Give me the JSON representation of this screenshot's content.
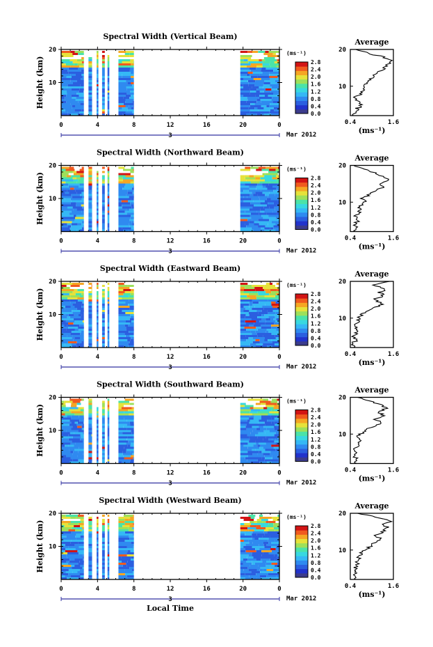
{
  "chart_data": [
    {
      "type": "heatmap",
      "title": "Spectral Width (Vertical Beam)",
      "ylabel": "Height (km)",
      "yticks": [
        "20",
        "10"
      ],
      "xticks": [
        "0",
        "4",
        "8",
        "12",
        "16",
        "20",
        "0"
      ],
      "xlim": [
        0,
        24
      ],
      "ylim": [
        0,
        20
      ],
      "date_label": "3",
      "month_label": "Mar 2012",
      "data_blocks_hours": [
        [
          0,
          2.5
        ],
        [
          3.0,
          3.4
        ],
        [
          3.9,
          4.1
        ],
        [
          4.5,
          4.8
        ],
        [
          5.1,
          5.3
        ],
        [
          6.3,
          8.0
        ],
        [
          19.7,
          24
        ]
      ],
      "colorbar": {
        "unit": "(ms⁻¹)",
        "ticks": [
          "2.8",
          "2.4",
          "2.0",
          "1.6",
          "1.2",
          "0.8",
          "0.4",
          "0.0"
        ],
        "range": [
          0,
          2.8
        ]
      },
      "average": {
        "title": "Average",
        "xlabel": "(ms⁻¹)",
        "xticks": [
          "0.4",
          "1.6"
        ],
        "yticks": [
          "20",
          "10"
        ],
        "xlim": [
          0.4,
          1.6
        ],
        "ylim": [
          2,
          20
        ],
        "profile": [
          [
            0.5,
            2
          ],
          [
            0.55,
            3
          ],
          [
            0.6,
            4
          ],
          [
            0.75,
            5
          ],
          [
            0.6,
            6
          ],
          [
            0.55,
            7
          ],
          [
            0.7,
            8
          ],
          [
            0.75,
            9
          ],
          [
            0.8,
            10
          ],
          [
            0.9,
            11
          ],
          [
            1.0,
            12
          ],
          [
            1.1,
            13
          ],
          [
            1.2,
            14
          ],
          [
            1.35,
            15
          ],
          [
            1.45,
            16
          ],
          [
            1.5,
            17
          ],
          [
            1.3,
            18
          ],
          [
            0.9,
            19
          ],
          [
            0.55,
            20
          ]
        ]
      }
    },
    {
      "type": "heatmap",
      "title": "Spectral Width (Northward Beam)",
      "ylabel": "Height (km)",
      "yticks": [
        "20",
        "10"
      ],
      "xticks": [
        "0",
        "4",
        "8",
        "12",
        "16",
        "20",
        "0"
      ],
      "xlim": [
        0,
        24
      ],
      "ylim": [
        0,
        20
      ],
      "date_label": "3",
      "month_label": "Mar 2012",
      "data_blocks_hours": [
        [
          0,
          2.5
        ],
        [
          3.0,
          3.4
        ],
        [
          3.9,
          4.1
        ],
        [
          4.5,
          4.8
        ],
        [
          5.1,
          5.3
        ],
        [
          6.3,
          8.0
        ],
        [
          19.7,
          24
        ]
      ],
      "colorbar": {
        "unit": "(ms⁻¹)",
        "ticks": [
          "2.8",
          "2.4",
          "2.0",
          "1.6",
          "1.2",
          "0.8",
          "0.4",
          "0.0"
        ],
        "range": [
          0,
          2.8
        ]
      },
      "average": {
        "title": "Average",
        "xlabel": "(ms⁻¹)",
        "xticks": [
          "0.4",
          "1.6"
        ],
        "yticks": [
          "20",
          "10"
        ],
        "xlim": [
          0.4,
          1.6
        ],
        "ylim": [
          2,
          20
        ],
        "profile": [
          [
            0.5,
            2
          ],
          [
            0.6,
            3
          ],
          [
            0.5,
            4
          ],
          [
            0.65,
            5
          ],
          [
            0.55,
            6
          ],
          [
            0.6,
            7
          ],
          [
            0.7,
            8
          ],
          [
            0.65,
            9
          ],
          [
            0.8,
            10
          ],
          [
            0.75,
            11
          ],
          [
            0.9,
            12
          ],
          [
            1.05,
            13
          ],
          [
            1.3,
            14
          ],
          [
            1.2,
            15
          ],
          [
            1.45,
            16
          ],
          [
            1.3,
            17
          ],
          [
            1.1,
            18
          ],
          [
            0.8,
            19
          ],
          [
            0.5,
            20
          ]
        ]
      }
    },
    {
      "type": "heatmap",
      "title": "Spectral Width (Eastward Beam)",
      "ylabel": "Height (km)",
      "yticks": [
        "20",
        "10"
      ],
      "xticks": [
        "0",
        "4",
        "8",
        "12",
        "16",
        "20",
        "0"
      ],
      "xlim": [
        0,
        24
      ],
      "ylim": [
        0,
        20
      ],
      "date_label": "3",
      "month_label": "Mar 2012",
      "data_blocks_hours": [
        [
          0,
          2.5
        ],
        [
          3.0,
          3.4
        ],
        [
          3.9,
          4.1
        ],
        [
          4.5,
          4.8
        ],
        [
          5.1,
          5.3
        ],
        [
          6.3,
          8.0
        ],
        [
          19.7,
          24
        ]
      ],
      "colorbar": {
        "unit": "(ms⁻¹)",
        "ticks": [
          "2.8",
          "2.4",
          "2.0",
          "1.6",
          "1.2",
          "0.8",
          "0.4",
          "0.0"
        ],
        "range": [
          0,
          2.8
        ]
      },
      "average": {
        "title": "Average",
        "xlabel": "(ms⁻¹)",
        "xticks": [
          "0.4",
          "1.6"
        ],
        "yticks": [
          "20",
          "10"
        ],
        "xlim": [
          0.4,
          1.6
        ],
        "ylim": [
          2,
          20
        ],
        "profile": [
          [
            0.45,
            2
          ],
          [
            0.5,
            3
          ],
          [
            0.55,
            4
          ],
          [
            0.5,
            5
          ],
          [
            0.55,
            6
          ],
          [
            0.6,
            7
          ],
          [
            0.55,
            8
          ],
          [
            0.6,
            9
          ],
          [
            0.65,
            10
          ],
          [
            0.7,
            11
          ],
          [
            0.9,
            12
          ],
          [
            1.1,
            13
          ],
          [
            1.3,
            14
          ],
          [
            1.05,
            15
          ],
          [
            1.35,
            16
          ],
          [
            1.2,
            17
          ],
          [
            1.4,
            18
          ],
          [
            1.0,
            19
          ],
          [
            1.5,
            20
          ]
        ]
      }
    },
    {
      "type": "heatmap",
      "title": "Spectral Width (Southward Beam)",
      "ylabel": "Height (km)",
      "yticks": [
        "20",
        "10"
      ],
      "xticks": [
        "0",
        "4",
        "8",
        "12",
        "16",
        "20",
        "0"
      ],
      "xlim": [
        0,
        24
      ],
      "ylim": [
        0,
        20
      ],
      "date_label": "3",
      "month_label": "Mar 2012",
      "data_blocks_hours": [
        [
          0,
          2.5
        ],
        [
          3.0,
          3.4
        ],
        [
          3.9,
          4.1
        ],
        [
          4.5,
          4.8
        ],
        [
          5.1,
          5.3
        ],
        [
          6.3,
          8.0
        ],
        [
          19.7,
          24
        ]
      ],
      "colorbar": {
        "unit": "(ms⁻¹)",
        "ticks": [
          "2.8",
          "2.4",
          "2.0",
          "1.6",
          "1.2",
          "0.8",
          "0.4",
          "0.0"
        ],
        "range": [
          0,
          2.8
        ]
      },
      "average": {
        "title": "Average",
        "xlabel": "(ms⁻¹)",
        "xticks": [
          "0.4",
          "1.6"
        ],
        "yticks": [
          "20",
          "10"
        ],
        "xlim": [
          0.4,
          1.6
        ],
        "ylim": [
          2,
          20
        ],
        "profile": [
          [
            0.55,
            2
          ],
          [
            0.6,
            3
          ],
          [
            0.5,
            4
          ],
          [
            0.6,
            5
          ],
          [
            0.55,
            6
          ],
          [
            0.6,
            7
          ],
          [
            0.65,
            8
          ],
          [
            0.6,
            9
          ],
          [
            0.7,
            10
          ],
          [
            0.8,
            11
          ],
          [
            1.0,
            12
          ],
          [
            1.3,
            13
          ],
          [
            1.1,
            14
          ],
          [
            1.35,
            15
          ],
          [
            1.2,
            16
          ],
          [
            1.4,
            17
          ],
          [
            1.25,
            18
          ],
          [
            0.9,
            19
          ],
          [
            0.6,
            20
          ]
        ]
      }
    },
    {
      "type": "heatmap",
      "title": "Spectral Width (Westward Beam)",
      "ylabel": "Height (km)",
      "yticks": [
        "20",
        "10"
      ],
      "xticks": [
        "0",
        "4",
        "8",
        "12",
        "16",
        "20",
        "0"
      ],
      "xlim": [
        0,
        24
      ],
      "ylim": [
        0,
        20
      ],
      "date_label": "3",
      "month_label": "Mar 2012",
      "xlabel": "Local Time",
      "data_blocks_hours": [
        [
          0,
          2.5
        ],
        [
          3.0,
          3.4
        ],
        [
          3.9,
          4.1
        ],
        [
          4.5,
          4.8
        ],
        [
          5.1,
          5.3
        ],
        [
          6.3,
          8.0
        ],
        [
          19.7,
          24
        ]
      ],
      "colorbar": {
        "unit": "(ms⁻¹)",
        "ticks": [
          "2.8",
          "2.4",
          "2.0",
          "1.6",
          "1.2",
          "0.8",
          "0.4",
          "0.0"
        ],
        "range": [
          0,
          2.8
        ]
      },
      "average": {
        "title": "Average",
        "xlabel": "(ms⁻¹)",
        "xticks": [
          "0.4",
          "1.6"
        ],
        "yticks": [
          "20",
          "10"
        ],
        "xlim": [
          0.4,
          1.6
        ],
        "ylim": [
          2,
          20
        ],
        "profile": [
          [
            0.5,
            2
          ],
          [
            0.55,
            3
          ],
          [
            0.5,
            4
          ],
          [
            0.55,
            5
          ],
          [
            0.6,
            6
          ],
          [
            0.6,
            7
          ],
          [
            0.65,
            8
          ],
          [
            0.7,
            9
          ],
          [
            0.8,
            10
          ],
          [
            0.95,
            11
          ],
          [
            1.05,
            12
          ],
          [
            1.25,
            13
          ],
          [
            1.1,
            14
          ],
          [
            1.3,
            15
          ],
          [
            1.45,
            16
          ],
          [
            1.35,
            17
          ],
          [
            1.55,
            18
          ],
          [
            1.1,
            19
          ],
          [
            0.6,
            20
          ]
        ]
      }
    }
  ]
}
